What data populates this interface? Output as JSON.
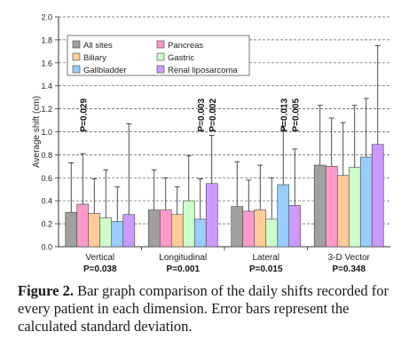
{
  "chart_data": {
    "type": "bar",
    "ylabel": "Average shift (cm)",
    "ylim": [
      0,
      2.0
    ],
    "yticks": [
      "0.0",
      "0.2",
      "0.4",
      "0.6",
      "0.8",
      "1.0",
      "1.2",
      "1.4",
      "1.6",
      "1.8",
      "2.0"
    ],
    "grid": "horizontal dashed",
    "legend_position": "top-left",
    "categories": [
      "Vertical",
      "Longitudinal",
      "Lateral",
      "3-D Vector"
    ],
    "category_pvalues": [
      "P=0.038",
      "P=0.001",
      "P=0.015",
      "P=0.348"
    ],
    "series": [
      {
        "name": "All sites",
        "color": "#a0a0a0",
        "values": [
          0.3,
          0.32,
          0.35,
          0.71
        ],
        "errors": [
          0.43,
          0.35,
          0.39,
          0.52
        ]
      },
      {
        "name": "Pancreas",
        "color": "#ff99cc",
        "values": [
          0.37,
          0.32,
          0.31,
          0.7
        ],
        "errors": [
          0.44,
          0.28,
          0.27,
          0.42
        ]
      },
      {
        "name": "Biliary",
        "color": "#ffcc99",
        "values": [
          0.29,
          0.28,
          0.32,
          0.62
        ],
        "errors": [
          0.3,
          0.24,
          0.39,
          0.46
        ]
      },
      {
        "name": "Gastric",
        "color": "#ccffcc",
        "values": [
          0.25,
          0.4,
          0.24,
          0.69
        ],
        "errors": [
          0.42,
          0.39,
          0.36,
          0.54
        ]
      },
      {
        "name": "Gallbladder",
        "color": "#99ccff",
        "values": [
          0.22,
          0.24,
          0.54,
          0.78
        ],
        "errors": [
          0.3,
          0.35,
          0.51,
          0.51
        ]
      },
      {
        "name": "Renal liposarcoma",
        "color": "#cc99ff",
        "values": [
          0.28,
          0.55,
          0.36,
          0.89
        ],
        "errors": [
          0.79,
          0.42,
          0.49,
          0.86
        ]
      }
    ],
    "annotations": [
      {
        "text": "P=0.029",
        "category": "Vertical",
        "series": "Pancreas"
      },
      {
        "text": "P=0.003",
        "category": "Longitudinal",
        "series": "Gallbladder"
      },
      {
        "text": "P=0.002",
        "category": "Longitudinal",
        "series": "Renal liposarcoma"
      },
      {
        "text": "P=0.013",
        "category": "Lateral",
        "series": "Gallbladder"
      },
      {
        "text": "P=0.005",
        "category": "Lateral",
        "series": "Renal liposarcoma"
      }
    ]
  },
  "caption": {
    "label": "Figure 2.",
    "text": " Bar graph comparison of the daily shifts recorded for every patient in each dimension. Error bars represent the calculated standard deviation."
  }
}
